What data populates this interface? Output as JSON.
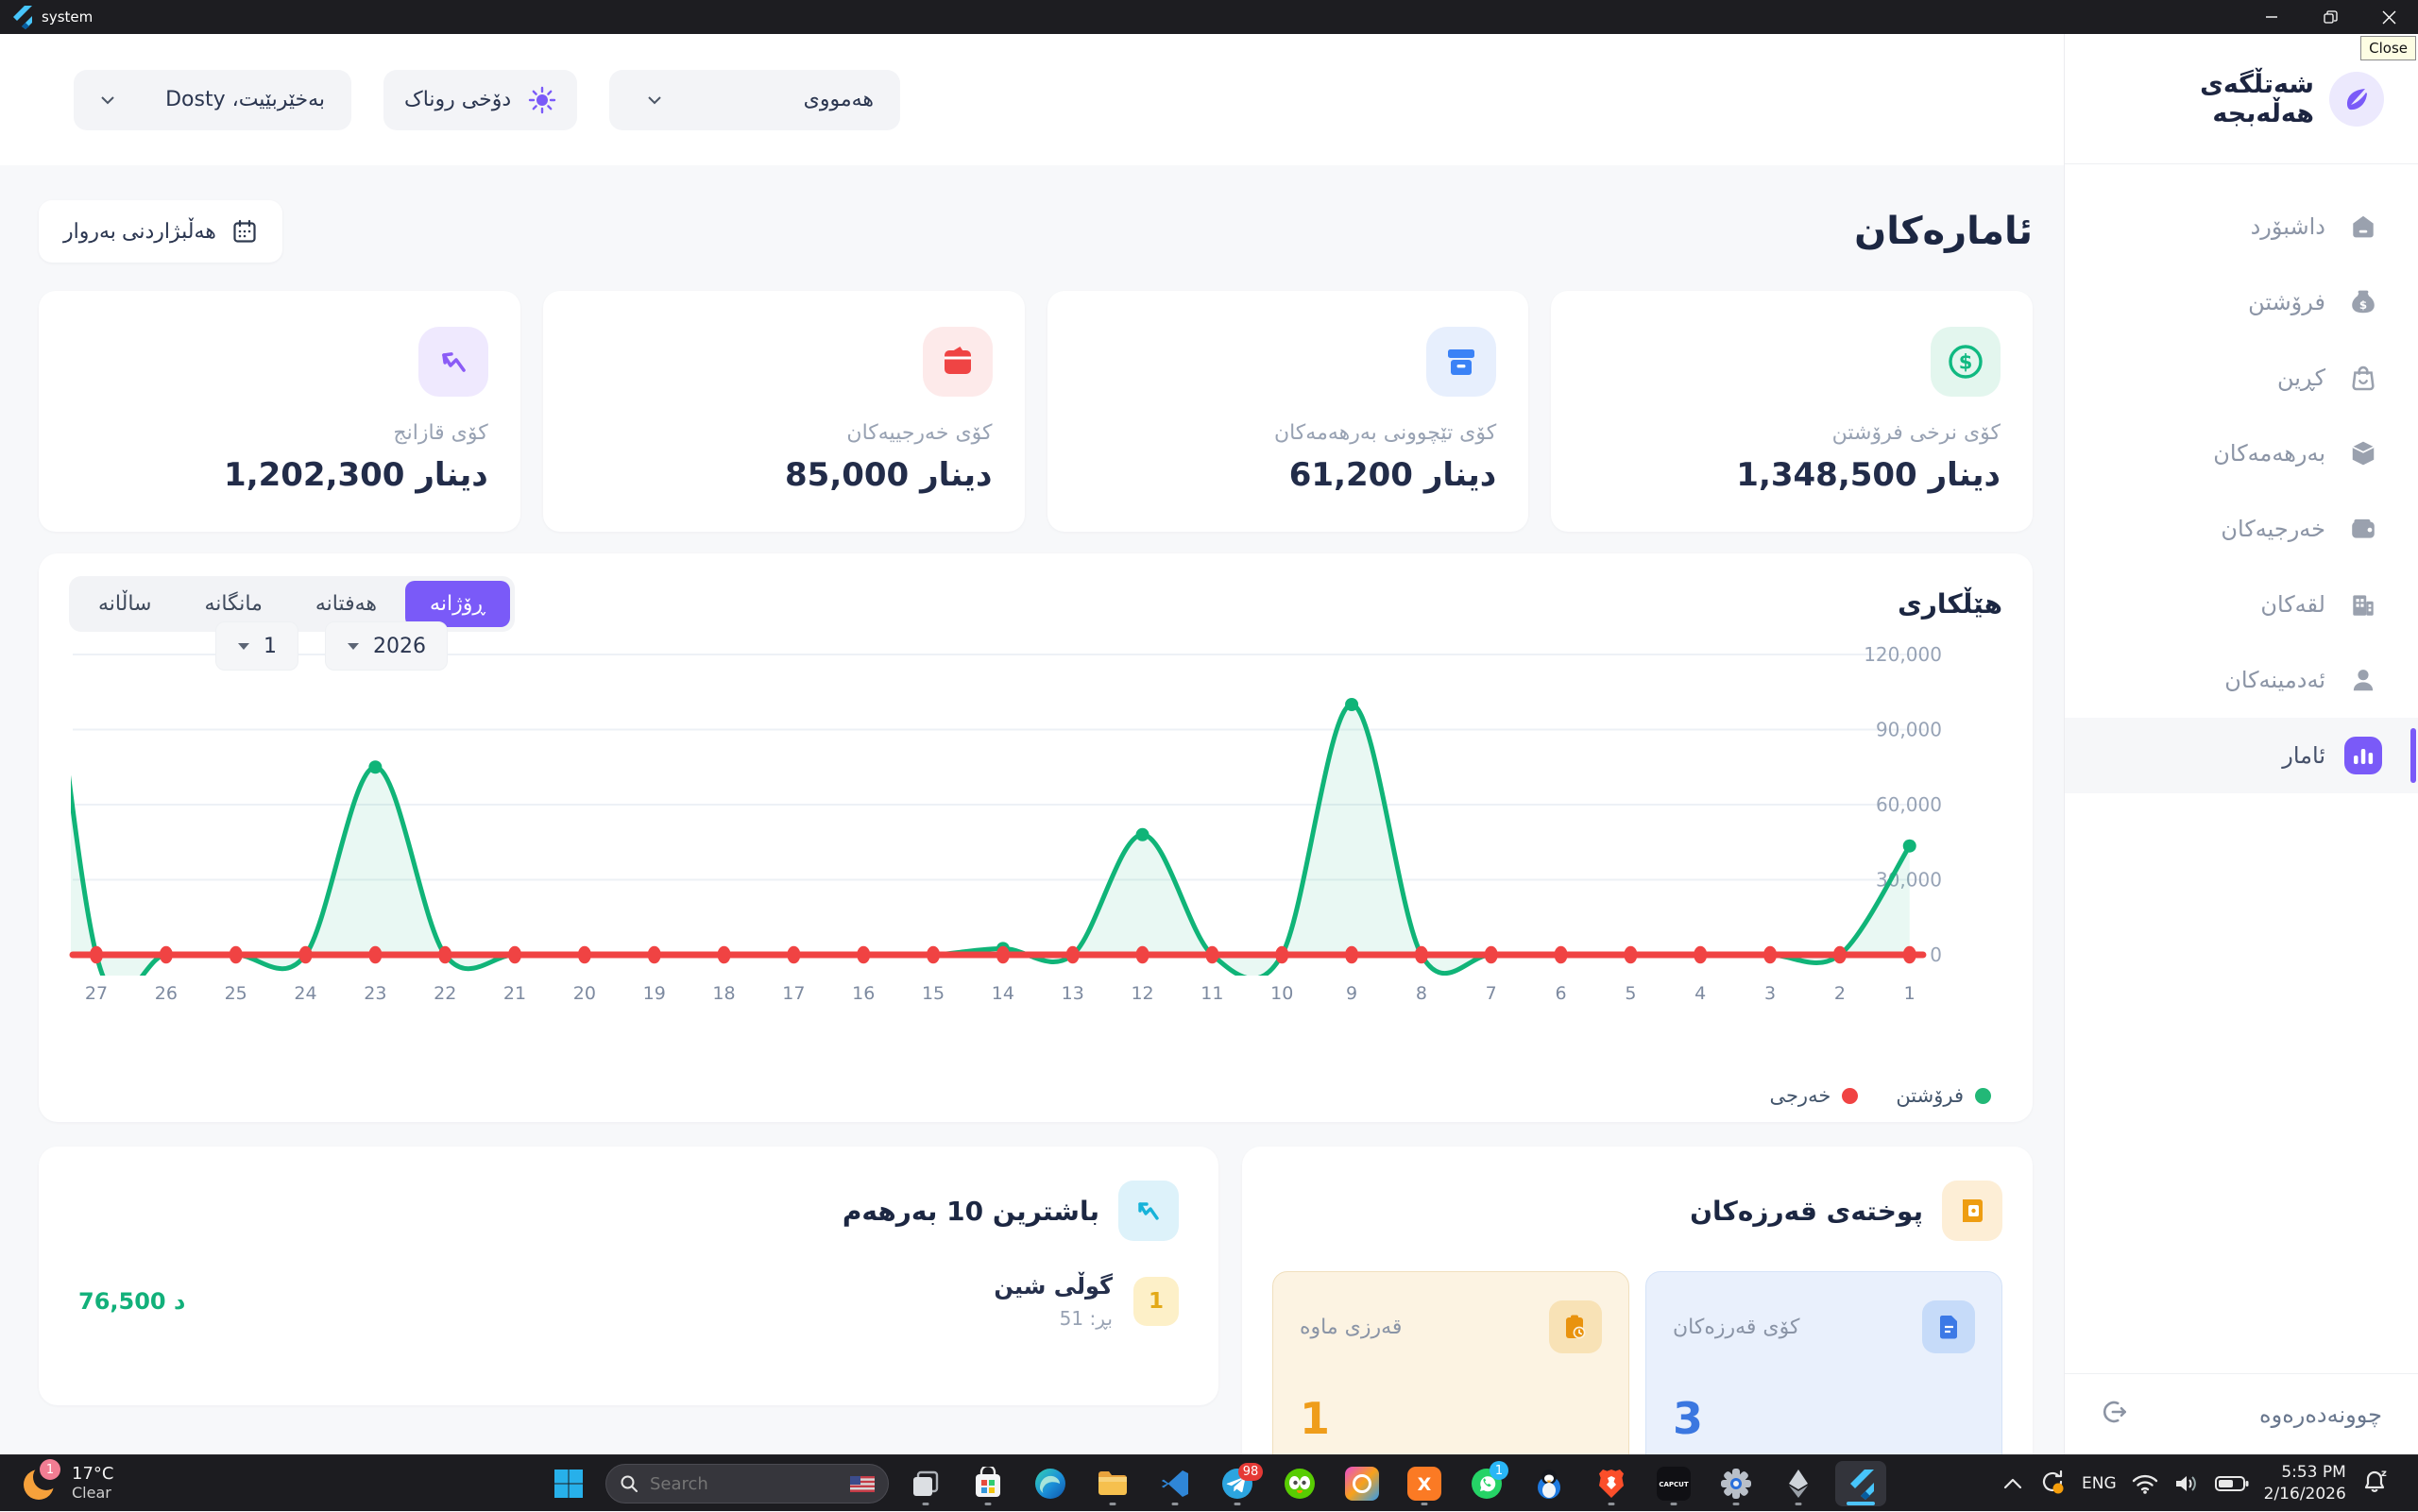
{
  "titlebar": {
    "app_title": "system",
    "close_tooltip": "Close"
  },
  "header": {
    "user_menu": "بەخێربێیت، Dosty",
    "theme_button": "دۆخی روناک",
    "scope_select": "هەمووی"
  },
  "sidebar": {
    "brand": "شەتڵگەی هەڵەبجە",
    "items": [
      {
        "label": "داشبۆرد"
      },
      {
        "label": "فرۆشتن"
      },
      {
        "label": "کڕین"
      },
      {
        "label": "بەرهەمەکان"
      },
      {
        "label": "خەرجیەکان"
      },
      {
        "label": "لقەکان"
      },
      {
        "label": "ئەدمینەکان"
      },
      {
        "label": "ئامار",
        "active": true
      }
    ],
    "logout_label": "چوونەدەرەوە"
  },
  "page": {
    "title": "ئامارەکان",
    "date_picker_label": "هەڵبژاردنی بەروار"
  },
  "stats": [
    {
      "label": "کۆی نرخی فرۆشتن",
      "value": "1,348,500 دینار",
      "icon": "dollar-circle",
      "color": "#10b981"
    },
    {
      "label": "کۆی تێچوونی بەرهەمەکان",
      "value": "61,200 دینار",
      "icon": "package-box",
      "color": "#3b82f6"
    },
    {
      "label": "کۆی خەرجییەکان",
      "value": "85,000 دینار",
      "icon": "wallet",
      "color": "#ef4444"
    },
    {
      "label": "کۆی قازانج",
      "value": "1,202,300 دینار",
      "icon": "trend-up",
      "color": "#8b5cf6"
    }
  ],
  "chart_section": {
    "title": "هێڵکاری",
    "tabs": [
      {
        "label": "ڕۆژانە",
        "active": true
      },
      {
        "label": "هەفتانە",
        "active": false
      },
      {
        "label": "مانگانە",
        "active": false
      },
      {
        "label": "ساڵانە",
        "active": false
      }
    ],
    "month_select": "1",
    "year_select": "2026"
  },
  "chart_data": {
    "type": "line",
    "title": "هێڵکاری",
    "x": [
      27,
      26,
      25,
      24,
      23,
      22,
      21,
      20,
      19,
      18,
      17,
      16,
      15,
      14,
      13,
      12,
      11,
      10,
      9,
      8,
      7,
      6,
      5,
      4,
      3,
      2,
      1
    ],
    "series": [
      {
        "name": "فرۆشتن",
        "color": "#10b478",
        "values": [
          0,
          0,
          0,
          0,
          75000,
          0,
          0,
          0,
          0,
          0,
          0,
          0,
          0,
          2500,
          0,
          48000,
          0,
          0,
          100000,
          0,
          0,
          0,
          0,
          0,
          0,
          0,
          43500
        ]
      },
      {
        "name": "خەرجی",
        "color": "#f04343",
        "values": [
          0,
          0,
          0,
          0,
          0,
          0,
          0,
          0,
          0,
          0,
          0,
          0,
          0,
          0,
          0,
          0,
          0,
          0,
          0,
          0,
          0,
          0,
          0,
          0,
          0,
          0,
          0
        ]
      }
    ],
    "ylim": [
      0,
      120000
    ],
    "yticks": [
      {
        "value": 120000,
        "label": "120,000"
      },
      {
        "value": 90000,
        "label": "90,000"
      },
      {
        "value": 60000,
        "label": "60,000"
      },
      {
        "value": 30000,
        "label": "30,000"
      },
      {
        "value": 0,
        "label": "0"
      }
    ],
    "lead_in_value": 220000,
    "grid": true,
    "legend_position": "bottom-right",
    "legend": [
      {
        "label": "فرۆشتن",
        "color": "#22b877"
      },
      {
        "label": "خەرجی",
        "color": "#f04343"
      }
    ]
  },
  "top_products": {
    "title": "باشترین 10 بەرهەم",
    "items": [
      {
        "rank": "1",
        "name": "گوڵی شین",
        "quantity": "بڕ: 51",
        "amount": "76,500 د"
      }
    ]
  },
  "debt_summary": {
    "title": "پوختەی قەرزەکان",
    "cards": [
      {
        "label": "کۆی قەرزەکان",
        "value": "3",
        "theme": "blue"
      },
      {
        "label": "قەرزی ماوە",
        "value": "1",
        "theme": "orange"
      }
    ]
  },
  "taskbar": {
    "weather": {
      "badge": "1",
      "temperature": "17°C",
      "condition": "Clear"
    },
    "search_placeholder": "Search",
    "badges": {
      "telegram": "98",
      "whatsapp": "1"
    },
    "icons": [
      "task-view",
      "microsoft-store",
      "edge",
      "file-explorer",
      "vscode",
      "telegram",
      "duolingo",
      "adobe-creative-cloud",
      "xampp",
      "whatsapp",
      "penguin",
      "brave",
      "capcut",
      "settings",
      "ethereum",
      "flutter-app"
    ],
    "tray": {
      "language": "ENG",
      "time": "5:53 PM",
      "date": "2/16/2026"
    }
  }
}
